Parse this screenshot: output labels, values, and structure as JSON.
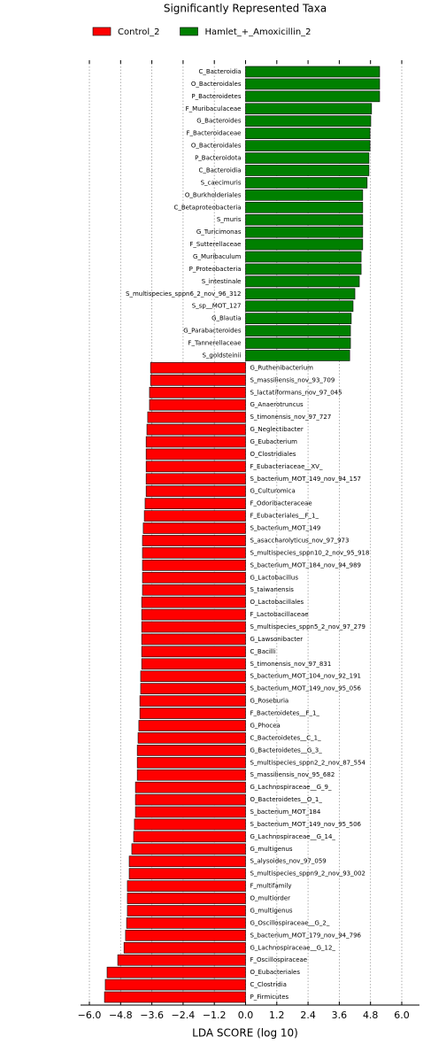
{
  "chart_data": {
    "type": "barh",
    "title": "Significantly Represented Taxa",
    "xlabel": "LDA SCORE (log 10)",
    "categories": [
      "C_Bacteroidia",
      "O_Bacteroidales",
      "P_Bacteroidetes",
      "F_Muribaculaceae",
      "G_Bacteroides",
      "F_Bacteroidaceae",
      "O_Bacteroidales",
      "P_Bacteroidota",
      "C_Bacteroidia",
      "S_caecimuris",
      "O_Burkholderiales",
      "C_Betaproteobacteria",
      "S_muris",
      "G_Turicimonas",
      "F_Sutterellaceae",
      "G_Muribaculum",
      "P_Proteobacteria",
      "S_intestinale",
      "S_multispecies_sppn6_2_nov_96_312",
      "S_sp__MOT_127",
      "G_Blautia",
      "G_Parabacteroides",
      "F_Tannerellaceae",
      "S_goldsteinii",
      "G_Ruthenibacterium",
      "S_massiliensis_nov_93_709",
      "S_lactatiformans_nov_97_045",
      "G_Anaerotruncus",
      "S_timonensis_nov_97_727",
      "G_Neglectibacter",
      "G_Eubacterium",
      "O_Clostridiales",
      "F_Eubacteriaceae__XV_",
      "S_bacterium_MOT_149_nov_94_157",
      "G_Culturomica",
      "F_Odoribacteraceae",
      "F_Eubacteriales__F_1_",
      "S_bacterium_MOT_149",
      "S_asaccharolyticus_nov_97_973",
      "S_multispecies_sppn10_2_nov_95_918",
      "S_bacterium_MOT_184_nov_94_989",
      "G_Lactobacillus",
      "S_taiwanensis",
      "O_Lactobacillales",
      "F_Lactobacillaceae",
      "S_multispecies_sppn5_2_nov_97_279",
      "G_Lawsonibacter",
      "C_Bacilli",
      "S_timonensis_nov_97_831",
      "S_bacterium_MOT_104_nov_92_191",
      "S_bacterium_MOT_149_nov_95_056",
      "G_Roseburia",
      "F_Bacteroidetes__F_1_",
      "G_Phocea",
      "C_Bacteroidetes__C_1_",
      "G_Bacteroidetes__G_3_",
      "S_multispecies_sppn2_2_nov_87_554",
      "S_massiliensis_nov_95_682",
      "G_Lachnospiraceae__G_9_",
      "O_Bacteroidetes__O_1_",
      "S_bacterium_MOT_184",
      "S_bacterium_MOT_149_nov_95_506",
      "G_Lachnospiraceae__G_14_",
      "G_multigenus",
      "S_alysoides_nov_97_059",
      "S_multispecies_sppn9_2_nov_93_002",
      "F_multifamily",
      "O_multiorder",
      "G_multigenus",
      "G_Oscillospiraceae__G_2_",
      "S_bacterium_MOT_179_nov_94_796",
      "G_Lachnospiraceae__G_12_",
      "F_Oscillospiraceae",
      "O_Eubacteriales",
      "C_Clostridia",
      "P_Firmicutes"
    ],
    "series": [
      {
        "name": "Control_2",
        "color": "#ff0000",
        "values": [
          null,
          null,
          null,
          null,
          null,
          null,
          null,
          null,
          null,
          null,
          null,
          null,
          null,
          null,
          null,
          null,
          null,
          null,
          null,
          null,
          null,
          null,
          null,
          null,
          -3.65,
          -3.65,
          -3.69,
          -3.69,
          -3.76,
          -3.79,
          -3.82,
          -3.82,
          -3.82,
          -3.82,
          -3.82,
          -3.86,
          -3.89,
          -3.93,
          -3.96,
          -3.96,
          -3.96,
          -3.96,
          -3.96,
          -3.99,
          -3.99,
          -3.99,
          -3.99,
          -3.99,
          -3.99,
          -4.03,
          -4.03,
          -4.06,
          -4.06,
          -4.1,
          -4.13,
          -4.16,
          -4.16,
          -4.16,
          -4.23,
          -4.23,
          -4.23,
          -4.27,
          -4.3,
          -4.37,
          -4.47,
          -4.47,
          -4.54,
          -4.54,
          -4.54,
          -4.57,
          -4.61,
          -4.67,
          -4.91,
          -5.32,
          -5.39,
          -5.42
        ]
      },
      {
        "name": "Hamlet_+_Amoxicillin_2",
        "color": "#008000",
        "values": [
          5.15,
          5.15,
          5.15,
          4.84,
          4.81,
          4.78,
          4.78,
          4.74,
          4.74,
          4.67,
          4.5,
          4.5,
          4.5,
          4.5,
          4.5,
          4.44,
          4.44,
          4.37,
          4.2,
          4.13,
          4.06,
          4.03,
          4.03,
          4.0,
          null,
          null,
          null,
          null,
          null,
          null,
          null,
          null,
          null,
          null,
          null,
          null,
          null,
          null,
          null,
          null,
          null,
          null,
          null,
          null,
          null,
          null,
          null,
          null,
          null,
          null,
          null,
          null,
          null,
          null,
          null,
          null,
          null,
          null,
          null,
          null,
          null,
          null,
          null,
          null,
          null,
          null,
          null,
          null,
          null,
          null,
          null,
          null,
          null,
          null,
          null,
          null
        ]
      }
    ],
    "xlim": [
      -6.0,
      6.0
    ],
    "xticks": [
      {
        "value": -6.0,
        "label": "−6.0"
      },
      {
        "value": -4.8,
        "label": "−4.8"
      },
      {
        "value": -3.6,
        "label": "−3.6"
      },
      {
        "value": -2.4,
        "label": "−2.4"
      },
      {
        "value": -1.2,
        "label": "−1.2"
      },
      {
        "value": 0,
        "label": "0.0"
      },
      {
        "value": 1.2,
        "label": "1.2"
      },
      {
        "value": 2.4,
        "label": "2.4"
      },
      {
        "value": 3.6,
        "label": "3.6"
      },
      {
        "value": 4.8,
        "label": "4.8"
      },
      {
        "value": 6.0,
        "label": "6.0"
      }
    ],
    "grid": true,
    "legend": "top"
  }
}
